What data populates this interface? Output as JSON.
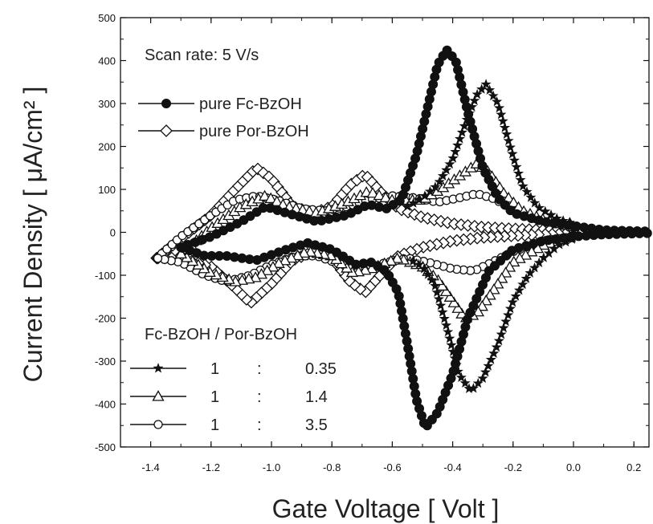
{
  "chart_data": {
    "type": "scatter",
    "title": "",
    "xlabel": "Gate Voltage [ Volt ]",
    "ylabel": "Current Density [ μA/cm² ]",
    "xlim": [
      -1.5,
      0.25
    ],
    "ylim": [
      -500,
      500
    ],
    "x_ticks": [
      "-1.4",
      "-1.2",
      "-1.0",
      "-0.8",
      "-0.6",
      "-0.4",
      "-0.2",
      "0.0",
      "0.2"
    ],
    "y_ticks": [
      "500",
      "400",
      "300",
      "200",
      "100",
      "0",
      "-100",
      "-200",
      "-300",
      "-400",
      "-500"
    ],
    "annotation": "Scan rate: 5 V/s",
    "ratio_header": "Fc-BzOH / Por-BzOH",
    "legend": [
      {
        "label": "pure Fc-BzOH",
        "marker": "filled-circle"
      },
      {
        "label": "pure Por-BzOH",
        "marker": "open-diamond"
      },
      {
        "label_a": "1",
        "sep": ":",
        "label_b": "0.35",
        "marker": "filled-star"
      },
      {
        "label_a": "1",
        "sep": ":",
        "label_b": "1.4",
        "marker": "open-triangle"
      },
      {
        "label_a": "1",
        "sep": ":",
        "label_b": "3.5",
        "marker": "open-circle"
      }
    ],
    "grid": false,
    "series": [
      {
        "name": "pure Fc-BzOH",
        "marker": "filled-circle",
        "upper": [
          [
            -1.3,
            -35
          ],
          [
            -1.2,
            -10
          ],
          [
            -1.1,
            25
          ],
          [
            -1.02,
            60
          ],
          [
            -0.95,
            45
          ],
          [
            -0.85,
            25
          ],
          [
            -0.75,
            40
          ],
          [
            -0.68,
            65
          ],
          [
            -0.62,
            55
          ],
          [
            -0.57,
            75
          ],
          [
            -0.52,
            180
          ],
          [
            -0.48,
            300
          ],
          [
            -0.45,
            390
          ],
          [
            -0.42,
            425
          ],
          [
            -0.39,
            400
          ],
          [
            -0.35,
            280
          ],
          [
            -0.3,
            150
          ],
          [
            -0.25,
            80
          ],
          [
            -0.2,
            45
          ],
          [
            -0.1,
            25
          ],
          [
            0.0,
            15
          ],
          [
            0.1,
            5
          ],
          [
            0.2,
            3
          ],
          [
            0.25,
            2
          ]
        ],
        "lower": [
          [
            0.25,
            -2
          ],
          [
            0.2,
            -3
          ],
          [
            0.1,
            -5
          ],
          [
            0.0,
            -10
          ],
          [
            -0.1,
            -20
          ],
          [
            -0.2,
            -40
          ],
          [
            -0.28,
            -90
          ],
          [
            -0.35,
            -200
          ],
          [
            -0.4,
            -330
          ],
          [
            -0.45,
            -420
          ],
          [
            -0.49,
            -455
          ],
          [
            -0.52,
            -390
          ],
          [
            -0.55,
            -260
          ],
          [
            -0.58,
            -140
          ],
          [
            -0.62,
            -90
          ],
          [
            -0.67,
            -70
          ],
          [
            -0.72,
            -75
          ],
          [
            -0.8,
            -40
          ],
          [
            -0.88,
            -25
          ],
          [
            -0.95,
            -40
          ],
          [
            -1.05,
            -65
          ],
          [
            -1.15,
            -55
          ],
          [
            -1.22,
            -55
          ],
          [
            -1.3,
            -35
          ]
        ]
      },
      {
        "name": "pure Por-BzOH",
        "marker": "open-diamond",
        "upper": [
          [
            -1.38,
            -60
          ],
          [
            -1.3,
            -15
          ],
          [
            -1.2,
            40
          ],
          [
            -1.12,
            100
          ],
          [
            -1.05,
            150
          ],
          [
            -1.0,
            125
          ],
          [
            -0.93,
            60
          ],
          [
            -0.86,
            45
          ],
          [
            -0.8,
            60
          ],
          [
            -0.74,
            110
          ],
          [
            -0.69,
            135
          ],
          [
            -0.64,
            95
          ],
          [
            -0.58,
            55
          ],
          [
            -0.5,
            35
          ],
          [
            -0.4,
            20
          ],
          [
            -0.3,
            12
          ],
          [
            -0.2,
            8
          ],
          [
            -0.1,
            5
          ],
          [
            0.0,
            3
          ]
        ],
        "lower": [
          [
            0.0,
            -3
          ],
          [
            -0.1,
            -5
          ],
          [
            -0.2,
            -8
          ],
          [
            -0.3,
            -12
          ],
          [
            -0.4,
            -20
          ],
          [
            -0.5,
            -35
          ],
          [
            -0.58,
            -55
          ],
          [
            -0.64,
            -100
          ],
          [
            -0.69,
            -140
          ],
          [
            -0.74,
            -115
          ],
          [
            -0.8,
            -60
          ],
          [
            -0.86,
            -45
          ],
          [
            -0.93,
            -65
          ],
          [
            -1.0,
            -120
          ],
          [
            -1.07,
            -165
          ],
          [
            -1.12,
            -130
          ],
          [
            -1.2,
            -80
          ],
          [
            -1.3,
            -60
          ],
          [
            -1.38,
            -60
          ]
        ]
      },
      {
        "name": "1 : 0.35",
        "marker": "filled-star",
        "upper": [
          [
            -0.55,
            60
          ],
          [
            -0.5,
            80
          ],
          [
            -0.45,
            110
          ],
          [
            -0.4,
            170
          ],
          [
            -0.36,
            250
          ],
          [
            -0.32,
            320
          ],
          [
            -0.29,
            345
          ],
          [
            -0.25,
            300
          ],
          [
            -0.21,
            200
          ],
          [
            -0.17,
            110
          ],
          [
            -0.12,
            60
          ],
          [
            -0.05,
            30
          ],
          [
            0.0,
            20
          ]
        ],
        "lower": [
          [
            0.0,
            -15
          ],
          [
            -0.05,
            -30
          ],
          [
            -0.1,
            -60
          ],
          [
            -0.15,
            -100
          ],
          [
            -0.2,
            -160
          ],
          [
            -0.25,
            -260
          ],
          [
            -0.3,
            -340
          ],
          [
            -0.34,
            -370
          ],
          [
            -0.38,
            -330
          ],
          [
            -0.42,
            -220
          ],
          [
            -0.46,
            -120
          ],
          [
            -0.5,
            -80
          ],
          [
            -0.55,
            -60
          ]
        ]
      },
      {
        "name": "1 : 1.4",
        "marker": "open-triangle",
        "upper": [
          [
            -1.3,
            -50
          ],
          [
            -1.2,
            10
          ],
          [
            -1.1,
            60
          ],
          [
            -1.02,
            85
          ],
          [
            -0.95,
            60
          ],
          [
            -0.85,
            45
          ],
          [
            -0.75,
            70
          ],
          [
            -0.68,
            95
          ],
          [
            -0.6,
            75
          ],
          [
            -0.5,
            75
          ],
          [
            -0.44,
            100
          ],
          [
            -0.38,
            130
          ],
          [
            -0.32,
            160
          ],
          [
            -0.28,
            140
          ],
          [
            -0.23,
            90
          ],
          [
            -0.17,
            50
          ],
          [
            -0.1,
            30
          ],
          [
            0.0,
            20
          ]
        ],
        "lower": [
          [
            0.0,
            -10
          ],
          [
            -0.1,
            -30
          ],
          [
            -0.2,
            -70
          ],
          [
            -0.27,
            -140
          ],
          [
            -0.32,
            -190
          ],
          [
            -0.36,
            -200
          ],
          [
            -0.4,
            -160
          ],
          [
            -0.45,
            -110
          ],
          [
            -0.5,
            -80
          ],
          [
            -0.58,
            -60
          ],
          [
            -0.67,
            -85
          ],
          [
            -0.73,
            -95
          ],
          [
            -0.8,
            -55
          ],
          [
            -0.88,
            -45
          ],
          [
            -0.97,
            -70
          ],
          [
            -1.05,
            -105
          ],
          [
            -1.12,
            -115
          ],
          [
            -1.2,
            -95
          ],
          [
            -1.3,
            -50
          ]
        ]
      },
      {
        "name": "1 : 3.5",
        "marker": "open-circle",
        "upper": [
          [
            -1.38,
            -60
          ],
          [
            -1.3,
            -10
          ],
          [
            -1.2,
            40
          ],
          [
            -1.12,
            75
          ],
          [
            -1.05,
            85
          ],
          [
            -0.98,
            75
          ],
          [
            -0.9,
            55
          ],
          [
            -0.82,
            50
          ],
          [
            -0.75,
            60
          ],
          [
            -0.68,
            75
          ],
          [
            -0.6,
            85
          ],
          [
            -0.52,
            80
          ],
          [
            -0.45,
            70
          ],
          [
            -0.38,
            80
          ],
          [
            -0.32,
            90
          ],
          [
            -0.27,
            80
          ],
          [
            -0.2,
            55
          ],
          [
            -0.12,
            30
          ],
          [
            0.0,
            10
          ]
        ],
        "lower": [
          [
            0.0,
            -10
          ],
          [
            -0.1,
            -20
          ],
          [
            -0.2,
            -45
          ],
          [
            -0.27,
            -70
          ],
          [
            -0.33,
            -90
          ],
          [
            -0.4,
            -85
          ],
          [
            -0.48,
            -70
          ],
          [
            -0.55,
            -60
          ],
          [
            -0.62,
            -70
          ],
          [
            -0.7,
            -90
          ],
          [
            -0.77,
            -75
          ],
          [
            -0.85,
            -55
          ],
          [
            -0.92,
            -55
          ],
          [
            -1.0,
            -75
          ],
          [
            -1.07,
            -100
          ],
          [
            -1.15,
            -115
          ],
          [
            -1.22,
            -100
          ],
          [
            -1.3,
            -70
          ],
          [
            -1.38,
            -60
          ]
        ]
      }
    ]
  }
}
